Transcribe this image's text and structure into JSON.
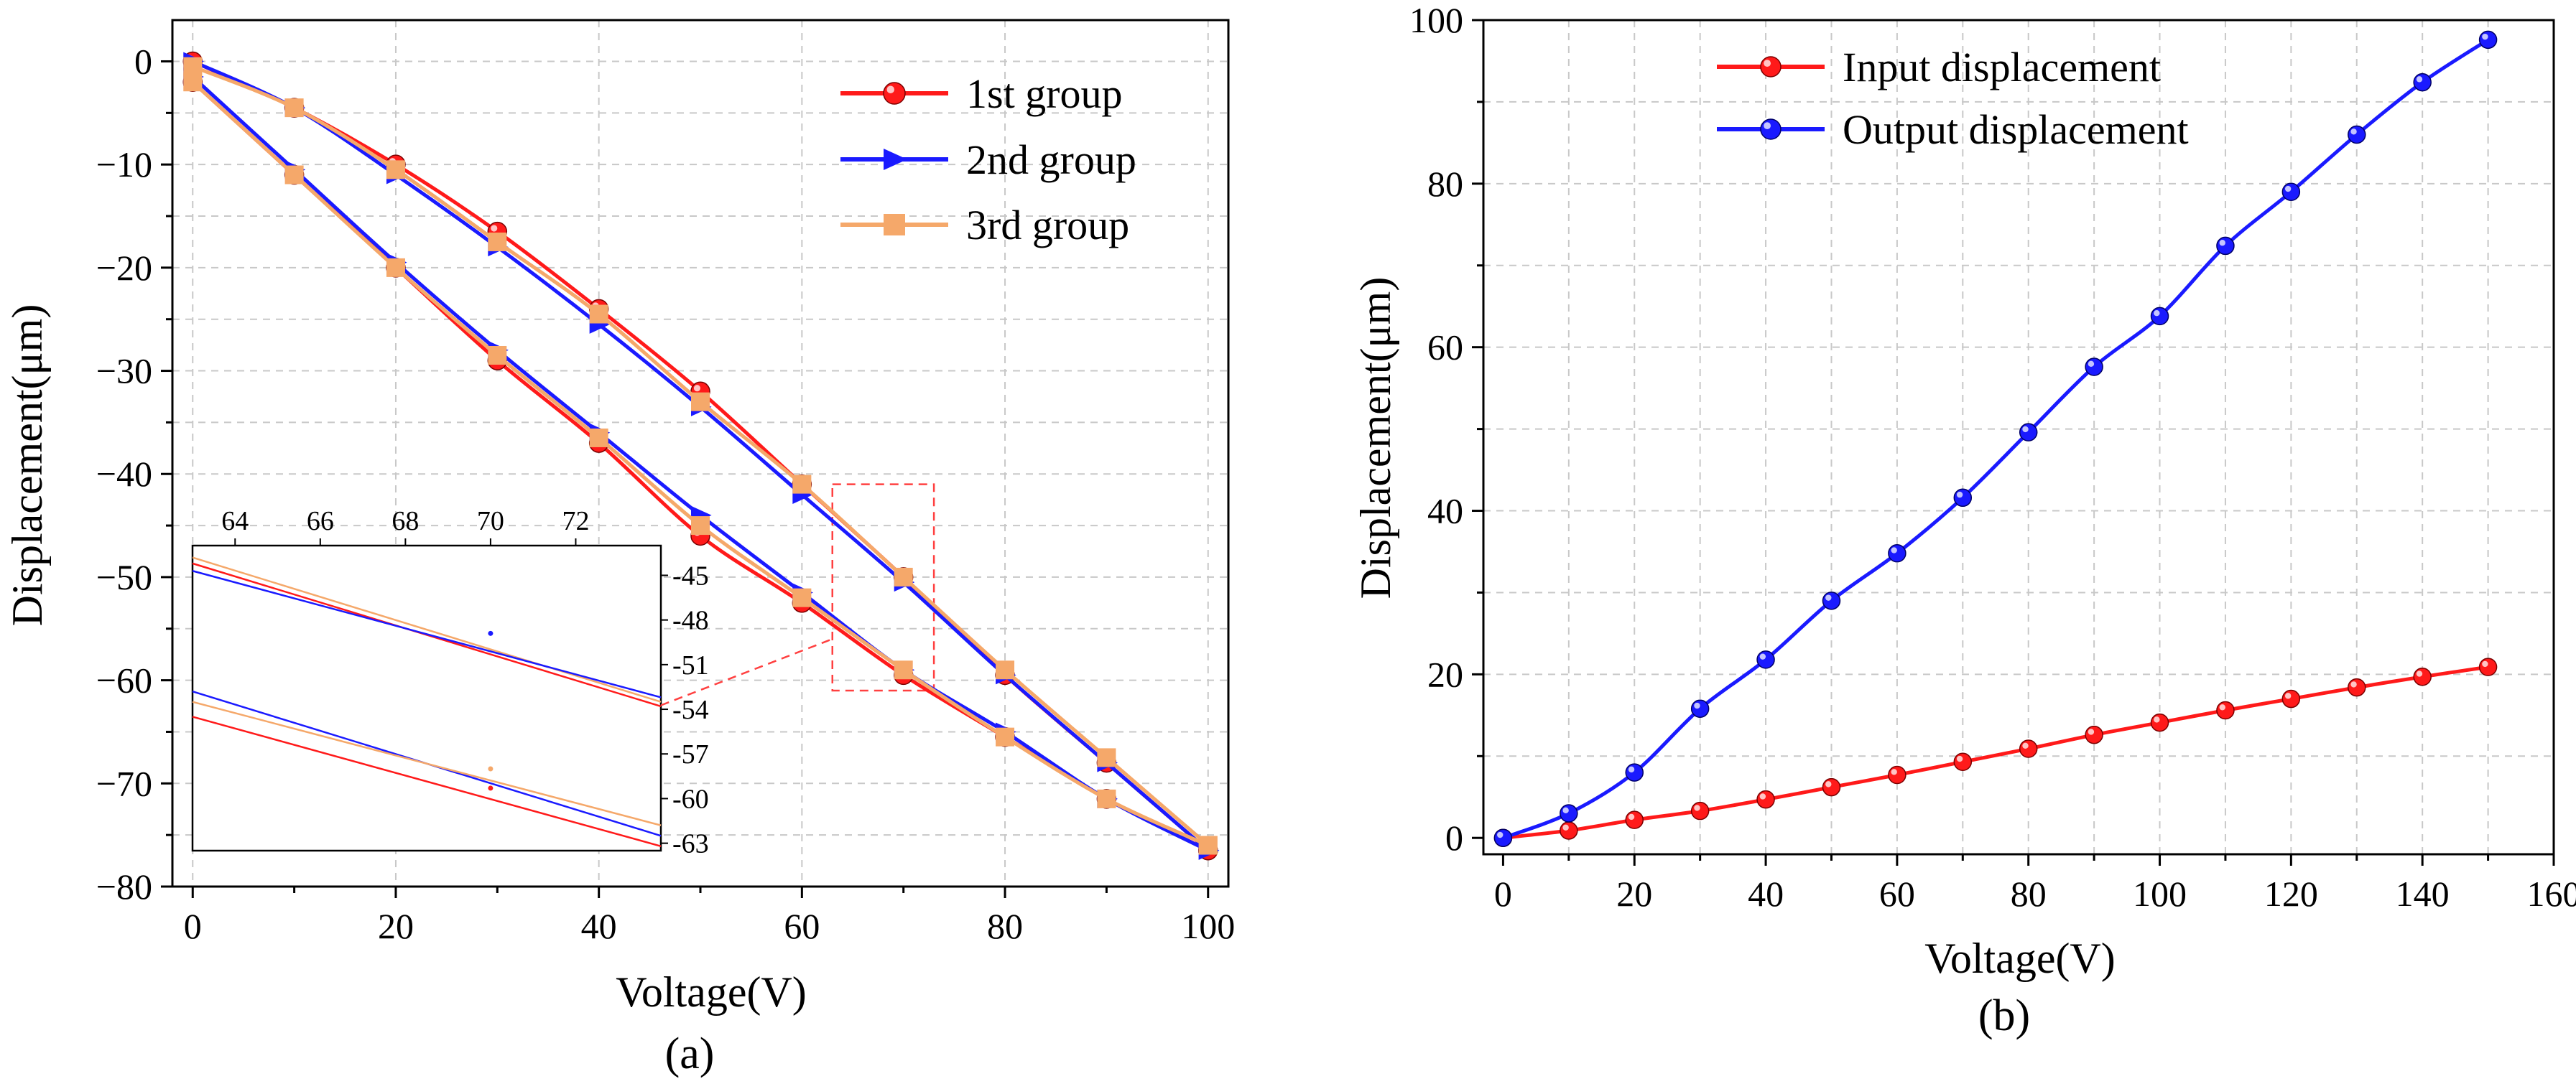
{
  "chart_data": [
    {
      "type": "line",
      "panel_label": "(a)",
      "xlabel": "Voltage(V)",
      "ylabel": "Displacement(μm)",
      "xlim": [
        -2,
        102
      ],
      "ylim": [
        -80,
        4
      ],
      "xticks": [
        0,
        20,
        40,
        60,
        80,
        100
      ],
      "yticks": [
        0,
        -10,
        -20,
        -30,
        -40,
        -50,
        -60,
        -70,
        -80
      ],
      "xtick_labels": [
        "0",
        "20",
        "40",
        "60",
        "80",
        "100"
      ],
      "ytick_labels": [
        "0",
        "−10",
        "−20",
        "−30",
        "−40",
        "−50",
        "−60",
        "−70",
        "−80"
      ],
      "grid": true,
      "legend_position": "top-right",
      "x_up": [
        0,
        10,
        20,
        30,
        40,
        50,
        60,
        70,
        80,
        90,
        100
      ],
      "x_down": [
        100,
        90,
        80,
        70,
        60,
        50,
        40,
        30,
        20,
        10,
        0
      ],
      "series": [
        {
          "name": "1st group",
          "color": "#ff1a1a",
          "marker": "circle",
          "up": [
            -2,
            -11,
            -20,
            -29,
            -37,
            -46,
            -52.5,
            -59.5,
            -65.5,
            -71.5,
            -76.5
          ],
          "down": [
            -76.5,
            -68,
            -59.5,
            -50,
            -41,
            -32,
            -24,
            -16.5,
            -10,
            -4.5,
            0
          ]
        },
        {
          "name": "2nd group",
          "color": "#1a1aff",
          "marker": "triangle-right",
          "up": [
            -1.5,
            -10.5,
            -19.5,
            -28,
            -36,
            -44,
            -51.5,
            -59,
            -65,
            -71.5,
            -76.5
          ],
          "down": [
            -76.5,
            -68,
            -59.5,
            -50.5,
            -42,
            -33.5,
            -25.5,
            -18,
            -11,
            -4.5,
            0
          ]
        },
        {
          "name": "3rd group",
          "color": "#f5a86a",
          "marker": "square",
          "up": [
            -2,
            -11,
            -20,
            -28.5,
            -36.5,
            -45,
            -52,
            -59,
            -65.5,
            -71.5,
            -76
          ],
          "down": [
            -76,
            -67.5,
            -59,
            -50,
            -41,
            -33,
            -24.5,
            -17.5,
            -10.5,
            -4.5,
            -0.5
          ]
        }
      ],
      "inset": {
        "xlim": [
          63,
          74
        ],
        "ylim": [
          -63.5,
          -43
        ],
        "xticks": [
          64,
          66,
          68,
          70,
          72
        ],
        "yticks": [
          -45,
          -48,
          -51,
          -54,
          -57,
          -60,
          -63
        ],
        "xtick_labels": [
          "64",
          "66",
          "68",
          "70",
          "72"
        ],
        "ytick_labels": [
          "-45",
          "-48",
          "-51",
          "-54",
          "-57",
          "-60",
          "-63"
        ],
        "zoom_region": {
          "x": [
            63,
            73
          ],
          "y": [
            -61,
            -41
          ]
        },
        "lines": [
          {
            "color": "#f5a86a",
            "x": [
              63,
              74
            ],
            "y": [
              -43.8,
              -53.5
            ]
          },
          {
            "color": "#ff1a1a",
            "x": [
              63,
              74
            ],
            "y": [
              -44.2,
              -53.8
            ]
          },
          {
            "color": "#1a1aff",
            "x": [
              63,
              74
            ],
            "y": [
              -44.7,
              -53.2
            ]
          },
          {
            "color": "#1a1aff",
            "x": [
              63,
              74
            ],
            "y": [
              -52.8,
              -62.5
            ]
          },
          {
            "color": "#f5a86a",
            "x": [
              63,
              74
            ],
            "y": [
              -53.5,
              -61.8
            ]
          },
          {
            "color": "#ff1a1a",
            "x": [
              63,
              74
            ],
            "y": [
              -54.5,
              -63.2
            ]
          }
        ]
      }
    },
    {
      "type": "line",
      "panel_label": "(b)",
      "xlabel": "Voltage(V)",
      "ylabel": "Displacement(μm)",
      "xlim": [
        -3,
        160
      ],
      "ylim": [
        -2,
        100
      ],
      "xticks": [
        0,
        20,
        40,
        60,
        80,
        100,
        120,
        140,
        160
      ],
      "yticks": [
        0,
        20,
        40,
        60,
        80,
        100
      ],
      "xtick_labels": [
        "0",
        "20",
        "40",
        "60",
        "80",
        "100",
        "120",
        "140",
        "160"
      ],
      "ytick_labels": [
        "0",
        "20",
        "40",
        "60",
        "80",
        "100"
      ],
      "grid": true,
      "legend_position": "top-left",
      "x": [
        0,
        10,
        20,
        30,
        40,
        50,
        60,
        70,
        80,
        90,
        100,
        110,
        120,
        130,
        140,
        150
      ],
      "series": [
        {
          "name": "Input displacement",
          "color": "#ff1a1a",
          "marker": "circle",
          "values": [
            0,
            0.9,
            2.2,
            3.3,
            4.7,
            6.2,
            7.7,
            9.3,
            10.9,
            12.6,
            14.1,
            15.6,
            17.0,
            18.4,
            19.7,
            20.9
          ]
        },
        {
          "name": "Output displacement",
          "color": "#1a1aff",
          "marker": "circle",
          "values": [
            0,
            3,
            8,
            15.8,
            21.8,
            29,
            34.8,
            41.6,
            49.6,
            57.6,
            63.8,
            72.4,
            79,
            86,
            92.4,
            97.6
          ]
        }
      ]
    }
  ]
}
